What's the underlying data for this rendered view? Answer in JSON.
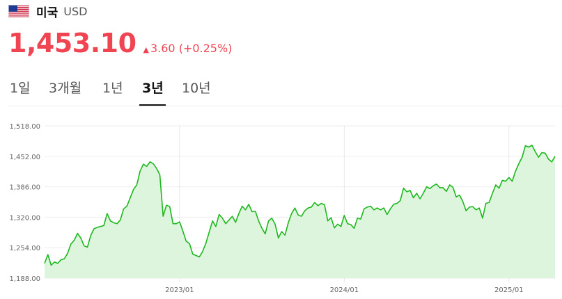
{
  "header": {
    "country": "미국",
    "currency": "USD",
    "flag_icon": "us-flag-icon"
  },
  "quote": {
    "price": "1,453.10",
    "change": "3.60 (+0.25%)",
    "direction": "up",
    "color": "#f04452"
  },
  "tabs": [
    {
      "label": "1일",
      "active": false
    },
    {
      "label": "3개월",
      "active": false
    },
    {
      "label": "1년",
      "active": false
    },
    {
      "label": "3년",
      "active": true
    },
    {
      "label": "10년",
      "active": false
    }
  ],
  "chart_data": {
    "type": "area",
    "line_color": "#1db81d",
    "fill_color": "#dcf5dc",
    "grid": true,
    "ylim": [
      1188,
      1518
    ],
    "y_ticks": [
      "1,518.00",
      "1,452.00",
      "1,386.00",
      "1,320.00",
      "1,254.00",
      "1,188.00"
    ],
    "y_tick_values": [
      1518,
      1452,
      1386,
      1320,
      1254,
      1188
    ],
    "x_ticks": [
      "2023/01",
      "2024/01",
      "2025/01"
    ],
    "x_tick_index": [
      41,
      91,
      141
    ],
    "values": [
      1220,
      1239,
      1216,
      1223,
      1220,
      1228,
      1230,
      1242,
      1262,
      1270,
      1285,
      1275,
      1258,
      1255,
      1280,
      1295,
      1298,
      1300,
      1302,
      1328,
      1312,
      1308,
      1306,
      1314,
      1338,
      1344,
      1362,
      1380,
      1390,
      1420,
      1435,
      1430,
      1440,
      1436,
      1426,
      1412,
      1322,
      1346,
      1343,
      1306,
      1306,
      1310,
      1290,
      1268,
      1263,
      1240,
      1237,
      1234,
      1246,
      1264,
      1288,
      1312,
      1300,
      1326,
      1318,
      1306,
      1314,
      1322,
      1309,
      1328,
      1344,
      1336,
      1348,
      1332,
      1333,
      1312,
      1296,
      1284,
      1312,
      1318,
      1305,
      1275,
      1289,
      1281,
      1308,
      1328,
      1340,
      1325,
      1322,
      1334,
      1340,
      1342,
      1352,
      1345,
      1350,
      1347,
      1312,
      1319,
      1297,
      1305,
      1300,
      1324,
      1306,
      1304,
      1296,
      1318,
      1316,
      1338,
      1342,
      1344,
      1336,
      1340,
      1336,
      1340,
      1326,
      1338,
      1348,
      1350,
      1356,
      1383,
      1375,
      1378,
      1362,
      1372,
      1360,
      1372,
      1386,
      1382,
      1388,
      1392,
      1384,
      1384,
      1376,
      1390,
      1385,
      1364,
      1368,
      1354,
      1334,
      1342,
      1343,
      1336,
      1340,
      1318,
      1350,
      1352,
      1372,
      1390,
      1383,
      1400,
      1398,
      1406,
      1398,
      1420,
      1436,
      1450,
      1475,
      1472,
      1476,
      1462,
      1450,
      1460,
      1459,
      1446,
      1440,
      1452
    ]
  }
}
